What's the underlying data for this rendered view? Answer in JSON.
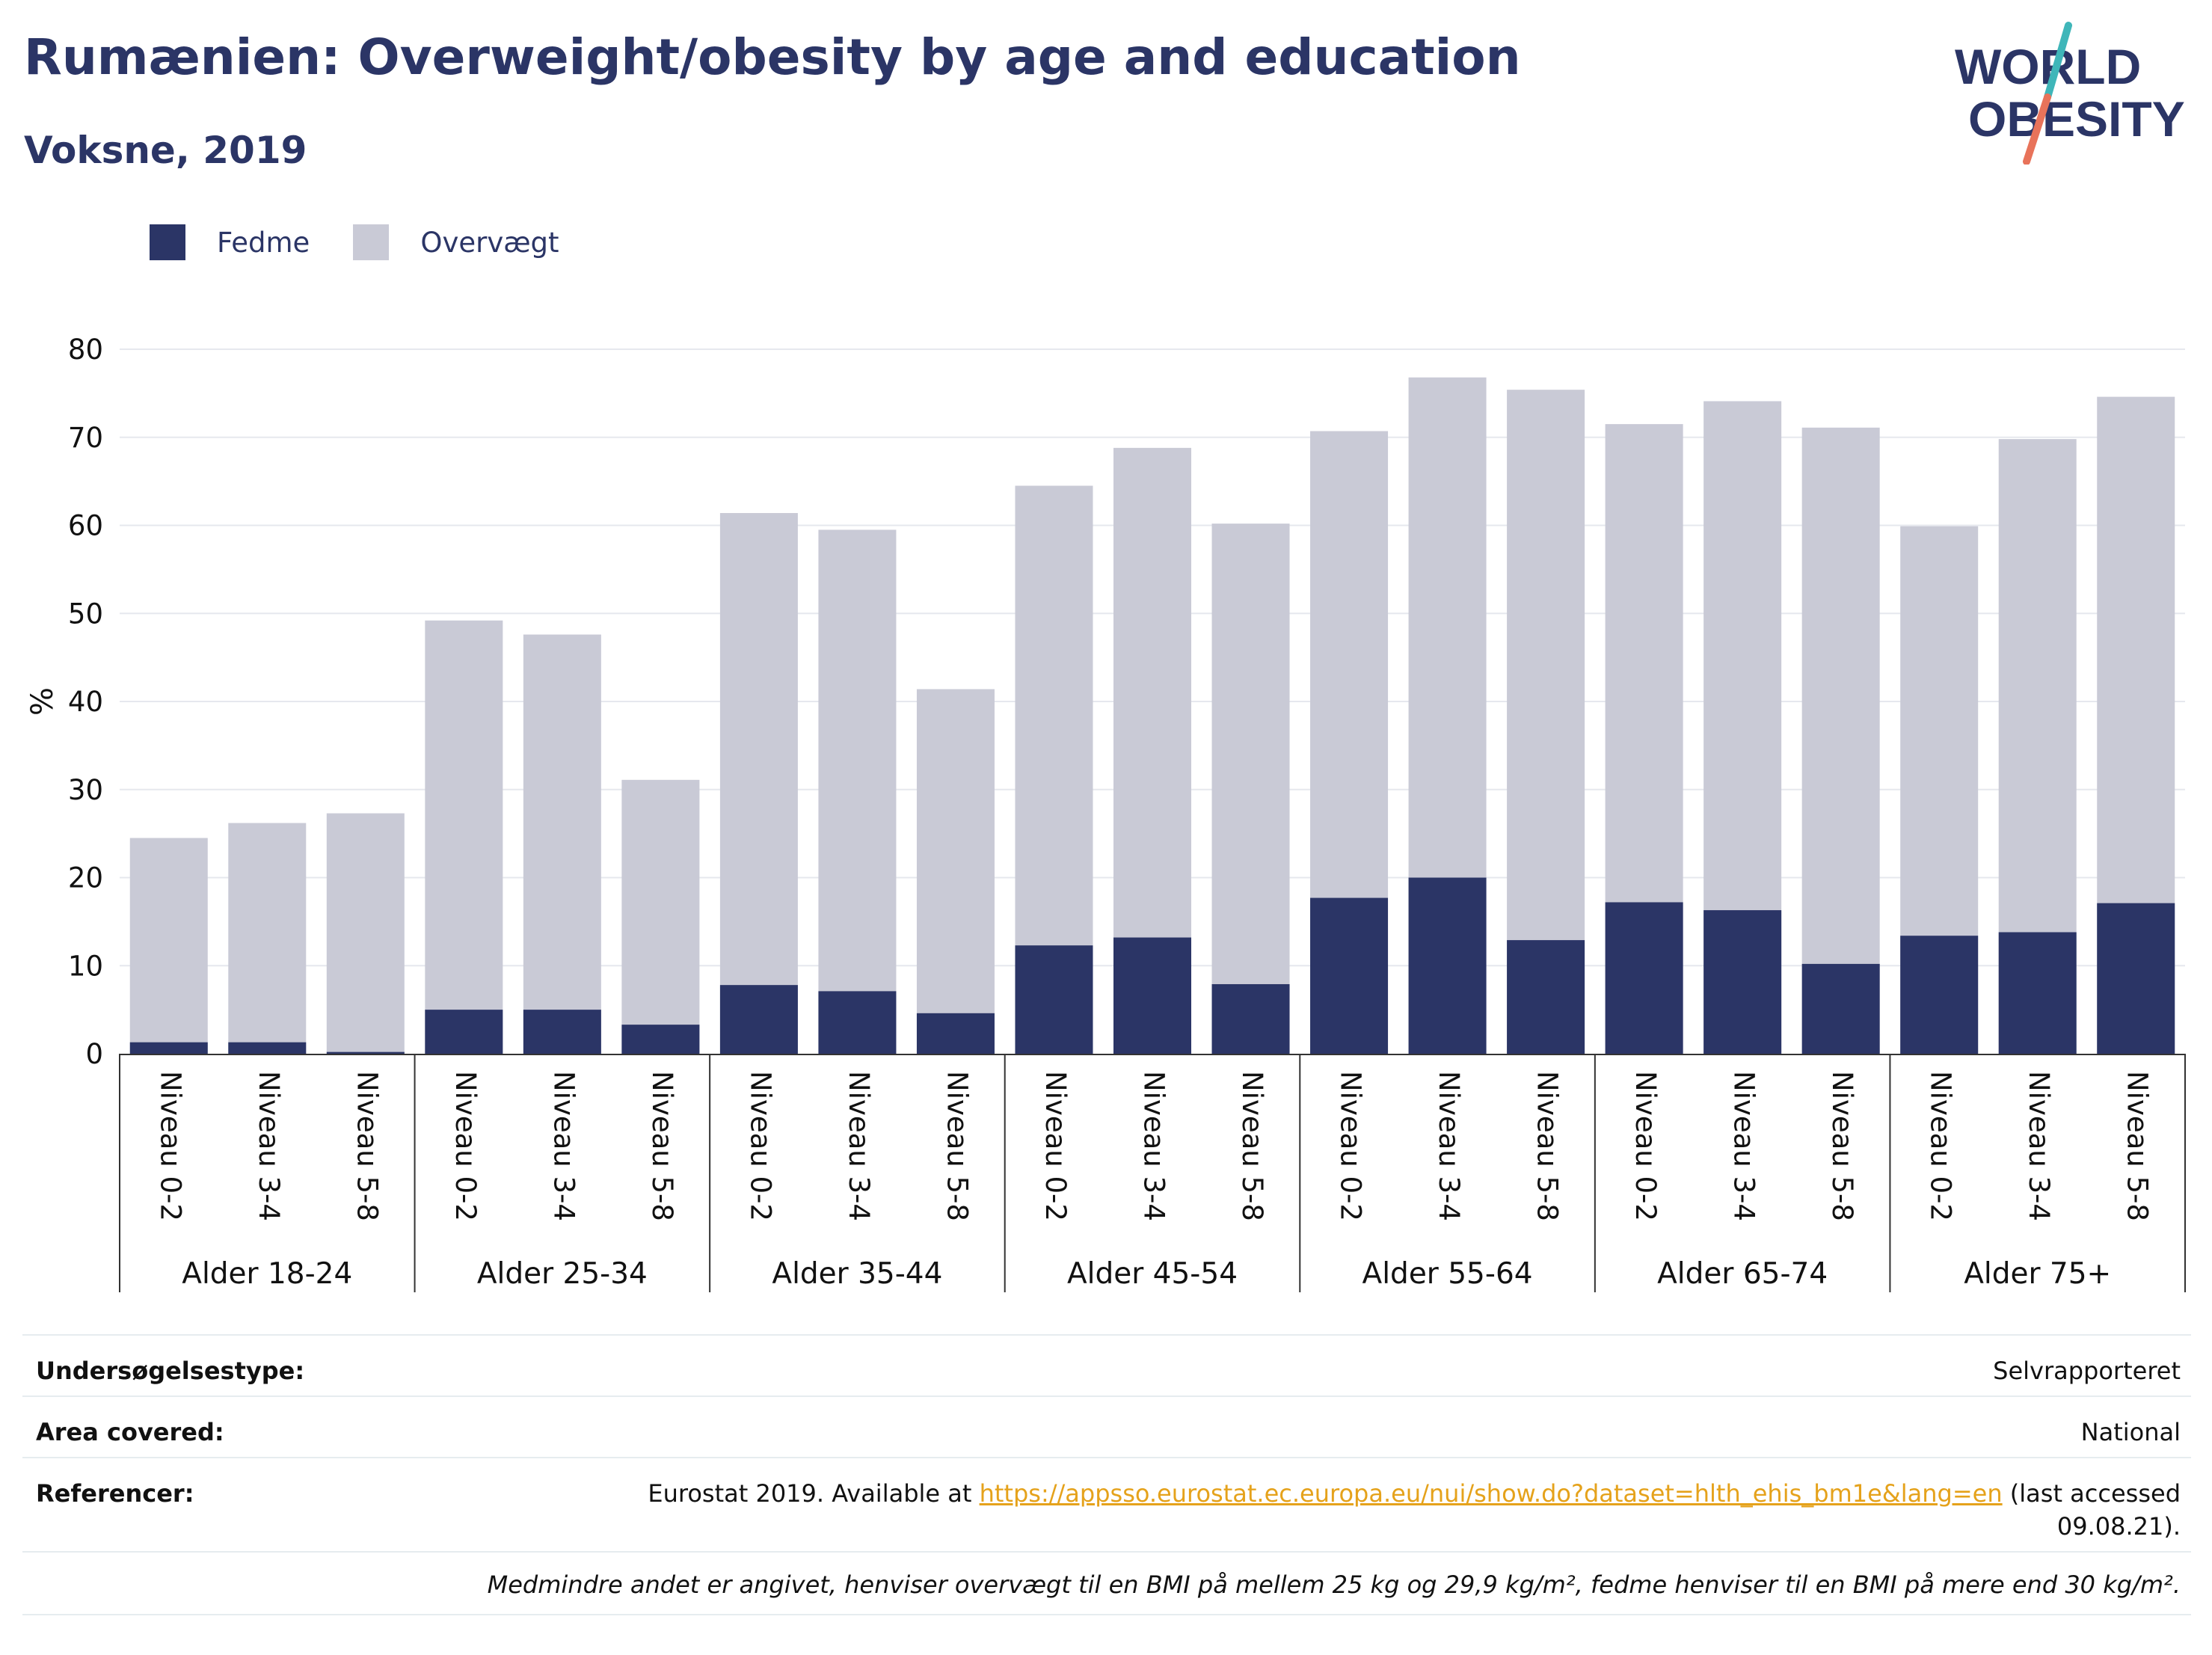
{
  "header": {
    "title": "Rumænien: Overweight/obesity by age and education",
    "subtitle": "Voksne, 2019"
  },
  "logo": {
    "line1": "WORLD",
    "line2": "OBESITY",
    "accent_teal": "#3fb6b9",
    "accent_coral": "#e8735a"
  },
  "colors": {
    "obesity": "#2b3566",
    "overweight": "#c9cad6",
    "text": "#2b3566",
    "link": "#e5a21b"
  },
  "legend": {
    "items": [
      {
        "label": "Fedme",
        "color": "#2b3566"
      },
      {
        "label": "Overvægt",
        "color": "#c9cad6"
      }
    ]
  },
  "chart_data": {
    "type": "bar",
    "stacked": true,
    "ylabel": "%",
    "ylim": [
      0,
      80
    ],
    "yticks": [
      0,
      10,
      20,
      30,
      40,
      50,
      60,
      70,
      80
    ],
    "grid": true,
    "legend_position": "top-left",
    "groups": [
      "Alder 18-24",
      "Alder 25-34",
      "Alder 35-44",
      "Alder 45-54",
      "Alder 55-64",
      "Alder 65-74",
      "Alder 75+"
    ],
    "subcategories": [
      "Niveau 0-2",
      "Niveau 3-4",
      "Niveau 5-8"
    ],
    "series": [
      {
        "name": "Fedme",
        "values": [
          1.3,
          1.3,
          0.2,
          5.0,
          5.0,
          3.3,
          7.8,
          7.1,
          4.6,
          12.3,
          13.2,
          7.9,
          17.7,
          20.0,
          12.9,
          17.2,
          16.3,
          10.2,
          13.4,
          13.8,
          17.1
        ]
      },
      {
        "name": "Overvægt",
        "values": [
          23.2,
          24.9,
          27.1,
          44.2,
          42.6,
          27.8,
          53.6,
          52.4,
          36.8,
          52.2,
          55.6,
          52.3,
          53.0,
          56.8,
          62.5,
          54.3,
          57.8,
          60.9,
          46.5,
          56.0,
          57.5
        ]
      }
    ],
    "totals": [
      24.5,
      26.2,
      27.3,
      49.2,
      47.6,
      31.1,
      61.4,
      59.5,
      41.4,
      64.5,
      68.8,
      60.2,
      70.7,
      76.8,
      75.4,
      71.5,
      74.1,
      71.1,
      59.9,
      69.8,
      74.6
    ]
  },
  "info_table": {
    "survey_type_label": "Undersøgelsestype:",
    "survey_type_value": "Selvrapporteret",
    "area_label": "Area covered:",
    "area_value": "National",
    "references_label": "Referencer:",
    "references_prefix": "Eurostat 2019. Available at",
    "references_link": "https://appsso.eurostat.ec.europa.eu/nui/show.do?dataset=hlth_ehis_bm1e&lang=en",
    "references_suffix_1": "(last accessed",
    "references_suffix_2": "09.08.21).",
    "note": "Medmindre andet er angivet, henviser overvægt til en BMI på mellem 25 kg og 29,9 kg/m², fedme henviser til en BMI på mere end 30 kg/m²."
  }
}
